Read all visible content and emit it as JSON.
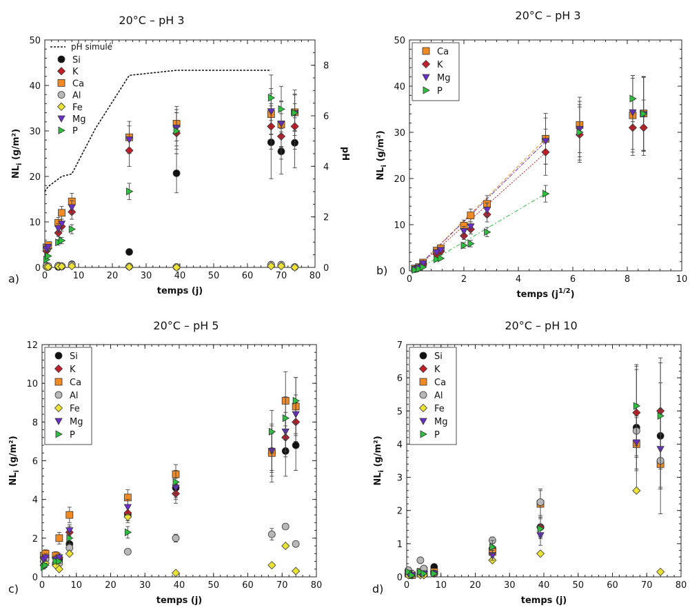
{
  "colors": {
    "Si": "#111111",
    "K": "#c0202a",
    "Ca": "#f08a24",
    "Al": "#b8b8b8",
    "Fe": "#ece236",
    "Mg": "#6a2fc8",
    "P": "#2fbf3f"
  },
  "markers": {
    "Si": "circle",
    "K": "diamond",
    "Ca": "square",
    "Al": "circle",
    "Fe": "diamond",
    "Mg": "triangle-down",
    "P": "triangle-right"
  },
  "chart_data": [
    {
      "panel": "a)",
      "type": "scatter",
      "title": "20°C – pH 3",
      "xlabel": "temps (j)",
      "ylabel": "NL",
      "ylabel_sub": "i",
      "ylabel_unit": " (g/m²)",
      "y2label": "pH",
      "xlim": [
        0,
        80
      ],
      "ylim": [
        0,
        50
      ],
      "y2lim": [
        0,
        9
      ],
      "xticks": [
        0,
        10,
        20,
        30,
        40,
        50,
        60,
        70,
        80
      ],
      "yticks": [
        0,
        10,
        20,
        30,
        40,
        50
      ],
      "y2ticks": [
        0,
        2,
        4,
        6,
        8
      ],
      "legend_placement": "top-left",
      "line_series": {
        "name": "pH simulé",
        "style": "dashed",
        "x": [
          0,
          1,
          3,
          5,
          8,
          15,
          25,
          39,
          50,
          60,
          67
        ],
        "y": [
          3.0,
          3.2,
          3.4,
          3.6,
          3.7,
          5.5,
          7.6,
          7.8,
          7.8,
          7.8,
          7.8
        ]
      },
      "series": [
        {
          "name": "Si",
          "x": [
            0.5,
            1,
            4,
            5,
            8,
            25,
            39,
            67,
            70,
            74
          ],
          "y": [
            0.2,
            0.1,
            0.1,
            0.2,
            0.7,
            3.4,
            20.7,
            27.5,
            25.5,
            27.4
          ],
          "err": [
            0,
            0,
            0,
            0,
            0,
            0.6,
            4.3,
            8,
            5,
            5.5
          ]
        },
        {
          "name": "K",
          "x": [
            0.5,
            1,
            4,
            5,
            8,
            25,
            39,
            67,
            70,
            74
          ],
          "y": [
            3.6,
            4.2,
            7.6,
            9.0,
            12.2,
            25.7,
            29.5,
            31.0,
            28.8,
            31.0
          ],
          "err": [
            0,
            0,
            0.8,
            1,
            1.6,
            3.5,
            4.5,
            5,
            5,
            5
          ]
        },
        {
          "name": "Ca",
          "x": [
            0.5,
            1,
            4,
            5,
            8,
            25,
            39,
            67,
            70,
            74
          ],
          "y": [
            4.4,
            4.9,
            9.8,
            12.0,
            14.5,
            28.6,
            31.6,
            33.7,
            31.4,
            34.1
          ],
          "err": [
            0.5,
            0.6,
            1.2,
            1.4,
            1.8,
            3.5,
            3.8,
            4.5,
            5,
            4
          ]
        },
        {
          "name": "Al",
          "x": [
            0.5,
            1,
            4,
            5,
            8,
            25,
            39,
            67,
            70,
            74
          ],
          "y": [
            0.4,
            0.3,
            0.4,
            0.3,
            0.6,
            0.2,
            0.1,
            0.6,
            0.6,
            0.1
          ],
          "err": [
            0,
            0,
            0,
            0,
            0,
            0,
            0,
            0,
            0,
            0
          ]
        },
        {
          "name": "Fe",
          "x": [
            0.5,
            1,
            4,
            5,
            8,
            25,
            39,
            67,
            70,
            74
          ],
          "y": [
            0.1,
            0.1,
            0.2,
            0.2,
            0.3,
            0.1,
            0.0,
            0.3,
            0.3,
            0.0
          ],
          "err": [
            0,
            0,
            0,
            0,
            0,
            0,
            0,
            0,
            0,
            0
          ]
        },
        {
          "name": "Mg",
          "x": [
            0.5,
            1,
            4,
            5,
            8,
            25,
            39,
            67,
            70,
            74
          ],
          "y": [
            4.0,
            4.5,
            8.6,
            9.6,
            13.2,
            28.1,
            30.7,
            34.3,
            31.6,
            33.9
          ],
          "err": [
            0,
            0,
            1,
            1,
            1.5,
            3,
            4,
            5,
            5,
            4
          ]
        },
        {
          "name": "P",
          "x": [
            0.5,
            1,
            4,
            5,
            8,
            25,
            39,
            67,
            70,
            74
          ],
          "y": [
            1.7,
            2.5,
            5.5,
            5.9,
            8.4,
            16.7,
            30.0,
            37.3,
            34.8,
            34.0
          ],
          "err": [
            0,
            0,
            0.6,
            0.7,
            1,
            1.8,
            4,
            5,
            5,
            5
          ]
        }
      ]
    },
    {
      "panel": "b)",
      "type": "scatter",
      "title": "20°C – pH 3",
      "xlabel": "temps (j",
      "xlabel_sup": "1/2",
      "xlabel_end": ")",
      "ylabel": "NL",
      "ylabel_sub": "i",
      "ylabel_unit": " (g/m²)",
      "xlim": [
        0,
        10
      ],
      "ylim": [
        0,
        50
      ],
      "xticks": [
        0,
        2,
        4,
        6,
        8,
        10
      ],
      "yticks": [
        0,
        10,
        20,
        30,
        40,
        50
      ],
      "legend_placement": "top-left",
      "fit_lines": [
        {
          "series": "Ca",
          "x": [
            0.2,
            5.0
          ],
          "y": [
            0.3,
            28.6
          ]
        },
        {
          "series": "K",
          "x": [
            0.2,
            5.0
          ],
          "y": [
            0.3,
            25.6
          ]
        },
        {
          "series": "Mg",
          "x": [
            0.2,
            5.0
          ],
          "y": [
            0.3,
            28.0
          ]
        },
        {
          "series": "P",
          "x": [
            0.2,
            5.0
          ],
          "y": [
            0.0,
            16.7
          ]
        }
      ],
      "series": [
        {
          "name": "Ca",
          "x": [
            0.2,
            0.35,
            0.5,
            1.0,
            1.15,
            2.0,
            2.25,
            2.85,
            5.0,
            6.25,
            8.2,
            8.6
          ],
          "y": [
            0.5,
            0.8,
            1.8,
            4.4,
            4.9,
            9.8,
            12.0,
            14.5,
            28.6,
            31.6,
            33.7,
            34.1
          ],
          "err": [
            0,
            0,
            0,
            0.5,
            0.6,
            1.2,
            1.4,
            1.8,
            5.5,
            6,
            8,
            8
          ]
        },
        {
          "name": "K",
          "x": [
            0.2,
            0.35,
            0.5,
            1.0,
            1.15,
            2.0,
            2.25,
            2.85,
            5.0,
            6.25,
            8.2,
            8.6
          ],
          "y": [
            0.4,
            0.7,
            1.5,
            3.6,
            4.2,
            7.6,
            9.0,
            12.2,
            25.7,
            29.5,
            31.0,
            31.0
          ],
          "err": [
            0,
            0,
            0,
            0,
            0,
            0.8,
            1,
            1.6,
            5,
            6,
            6,
            6
          ]
        },
        {
          "name": "Mg",
          "x": [
            0.2,
            0.35,
            0.5,
            1.0,
            1.15,
            2.0,
            2.25,
            2.85,
            5.0,
            6.25,
            8.2,
            8.6
          ],
          "y": [
            0.4,
            0.7,
            1.6,
            4.0,
            4.5,
            8.6,
            9.6,
            13.2,
            28.1,
            30.7,
            34.3,
            33.9
          ],
          "err": [
            0,
            0,
            0,
            0,
            0,
            1,
            1,
            1.5,
            5,
            6,
            8,
            8
          ]
        },
        {
          "name": "P",
          "x": [
            0.2,
            0.35,
            0.5,
            1.0,
            1.15,
            2.0,
            2.25,
            2.85,
            5.0,
            6.25,
            8.2,
            8.6
          ],
          "y": [
            0.2,
            0.4,
            0.8,
            2.5,
            2.7,
            5.5,
            5.9,
            8.4,
            16.7,
            30.0,
            37.3,
            34.0
          ],
          "err": [
            0,
            0,
            0,
            0,
            0,
            0.6,
            0.7,
            1,
            1.8,
            6,
            5,
            8
          ]
        }
      ]
    },
    {
      "panel": "c)",
      "type": "scatter",
      "title": "20°C – pH 5",
      "xlabel": "temps (j)",
      "ylabel": "NL",
      "ylabel_sub": "i",
      "ylabel_unit": " (g/m²)",
      "xlim": [
        0,
        80
      ],
      "ylim": [
        0,
        12
      ],
      "xticks": [
        0,
        10,
        20,
        30,
        40,
        50,
        60,
        70,
        80
      ],
      "yticks": [
        0,
        2,
        4,
        6,
        8,
        10,
        12
      ],
      "legend_placement": "top-left",
      "series": [
        {
          "name": "Si",
          "x": [
            0.5,
            1,
            4,
            5,
            8,
            25,
            39,
            67,
            71,
            74
          ],
          "y": [
            0.8,
            0.9,
            1.0,
            0.9,
            1.7,
            3.2,
            4.6,
            6.5,
            6.5,
            6.8
          ],
          "err": [
            0.2,
            0.2,
            0.2,
            0.2,
            0.3,
            0.4,
            0.6,
            1.3,
            1.3,
            1.3
          ]
        },
        {
          "name": "K",
          "x": [
            0.5,
            1,
            4,
            5,
            8,
            25,
            39,
            67,
            71,
            74
          ],
          "y": [
            1.0,
            1.0,
            1.0,
            1.0,
            2.3,
            3.3,
            4.3,
            6.4,
            7.2,
            8.0
          ],
          "err": [
            0.2,
            0.2,
            0.2,
            0.2,
            0.3,
            0.4,
            0.5,
            1,
            1,
            1
          ]
        },
        {
          "name": "Ca",
          "x": [
            0.5,
            1,
            4,
            5,
            8,
            25,
            39,
            67,
            71,
            74
          ],
          "y": [
            1.1,
            1.2,
            1.1,
            2.0,
            3.2,
            4.1,
            5.3,
            6.4,
            9.1,
            8.8
          ],
          "err": [
            0.2,
            0.2,
            0.2,
            0.3,
            0.4,
            0.4,
            0.5,
            1.5,
            1.5,
            1.5
          ]
        },
        {
          "name": "Al",
          "x": [
            0.5,
            1,
            4,
            5,
            8,
            25,
            39,
            67,
            71,
            74
          ],
          "y": [
            0.8,
            0.9,
            0.7,
            0.7,
            1.5,
            1.3,
            2.0,
            2.2,
            2.6,
            1.7
          ],
          "err": [
            0.1,
            0.1,
            0.1,
            0.1,
            0.2,
            0.1,
            0.2,
            0.3,
            0,
            0
          ]
        },
        {
          "name": "Fe",
          "x": [
            0.5,
            1,
            4,
            5,
            8,
            25,
            39,
            67,
            71,
            74
          ],
          "y": [
            0.6,
            0.7,
            0.6,
            0.4,
            1.2,
            3.1,
            0.2,
            0.6,
            1.6,
            0.3
          ],
          "err": [
            0,
            0,
            0,
            0,
            0,
            0,
            0,
            0,
            0,
            0
          ]
        },
        {
          "name": "Mg",
          "x": [
            0.5,
            1,
            4,
            5,
            8,
            25,
            39,
            67,
            71,
            74
          ],
          "y": [
            0.9,
            1.0,
            0.9,
            1.0,
            2.4,
            3.6,
            4.6,
            6.5,
            7.5,
            8.4
          ],
          "err": [
            0.2,
            0.2,
            0.2,
            0.2,
            0.3,
            0.4,
            0.5,
            1,
            1,
            1
          ]
        },
        {
          "name": "P",
          "x": [
            0.5,
            1,
            4,
            5,
            8,
            25,
            39,
            67,
            71,
            74
          ],
          "y": [
            0.5,
            0.6,
            0.8,
            0.8,
            2.0,
            2.3,
            4.9,
            7.5,
            8.2,
            9.1
          ],
          "err": [
            0.1,
            0.1,
            0.1,
            0.1,
            0.3,
            0.3,
            0.6,
            1.1,
            1.1,
            1.2
          ]
        }
      ]
    },
    {
      "panel": "d)",
      "type": "scatter",
      "title": "20°C – pH 10",
      "xlabel": "temps (j)",
      "ylabel": "NL",
      "ylabel_sub": "i",
      "ylabel_unit": " (g/m²)",
      "xlim": [
        0,
        80
      ],
      "ylim": [
        0,
        7
      ],
      "xticks": [
        0,
        10,
        20,
        30,
        40,
        50,
        60,
        70,
        80
      ],
      "yticks": [
        0,
        1,
        2,
        3,
        4,
        5,
        6,
        7
      ],
      "legend_placement": "top-left",
      "series": [
        {
          "name": "Si",
          "x": [
            0.5,
            1.5,
            4,
            5,
            8,
            25,
            39,
            67,
            74
          ],
          "y": [
            0.1,
            0.05,
            0.15,
            0.25,
            0.3,
            0.85,
            1.5,
            4.5,
            4.25
          ],
          "err": [
            0,
            0,
            0,
            0,
            0,
            0.2,
            0.3,
            1.9,
            1.6
          ]
        },
        {
          "name": "K",
          "x": [
            0.5,
            1.5,
            4,
            5,
            8,
            25,
            39,
            67,
            74
          ],
          "y": [
            0.1,
            0.05,
            0.1,
            0.15,
            0.15,
            0.85,
            1.5,
            4.95,
            5.0
          ],
          "err": [
            0,
            0,
            0,
            0,
            0,
            0.2,
            0.3,
            1.3,
            1.6
          ]
        },
        {
          "name": "Ca",
          "x": [
            0.5,
            1.5,
            4,
            5,
            8,
            25,
            39,
            67,
            74
          ],
          "y": [
            0.1,
            0.05,
            0.15,
            0.1,
            0.15,
            0.75,
            2.2,
            4.0,
            3.4
          ],
          "err": [
            0,
            0,
            0,
            0,
            0,
            0.15,
            0.4,
            0.8,
            1.5
          ]
        },
        {
          "name": "Al",
          "x": [
            0.5,
            1.5,
            4,
            5,
            8,
            25,
            39,
            67,
            74
          ],
          "y": [
            0.2,
            0.1,
            0.5,
            0.25,
            0.1,
            1.1,
            2.25,
            4.4,
            3.5
          ],
          "err": [
            0,
            0,
            0,
            0,
            0,
            0.1,
            0.4,
            0.8,
            0.8
          ]
        },
        {
          "name": "Fe",
          "x": [
            0.5,
            1.5,
            4,
            5,
            8,
            25,
            39,
            67,
            74
          ],
          "y": [
            0.05,
            0.05,
            0.05,
            0.05,
            0.1,
            0.5,
            0.7,
            2.6,
            0.15
          ],
          "err": [
            0,
            0,
            0,
            0,
            0,
            0,
            0,
            0,
            0
          ]
        },
        {
          "name": "Mg",
          "x": [
            0.5,
            1.5,
            4,
            5,
            8,
            25,
            39,
            67,
            74
          ],
          "y": [
            0.1,
            0.05,
            0.1,
            0.1,
            0.1,
            0.65,
            1.25,
            4.05,
            3.85
          ],
          "err": [
            0,
            0,
            0,
            0,
            0,
            0.15,
            0.3,
            0.8,
            1.2
          ]
        },
        {
          "name": "P",
          "x": [
            0.5,
            1.5,
            4,
            5,
            8,
            25,
            39,
            67,
            74
          ],
          "y": [
            0.15,
            0.05,
            0.15,
            0.1,
            0.1,
            0.9,
            1.45,
            5.15,
            4.85
          ],
          "err": [
            0,
            0,
            0,
            0,
            0,
            0.2,
            0.3,
            1.2,
            1.6
          ]
        }
      ]
    }
  ]
}
